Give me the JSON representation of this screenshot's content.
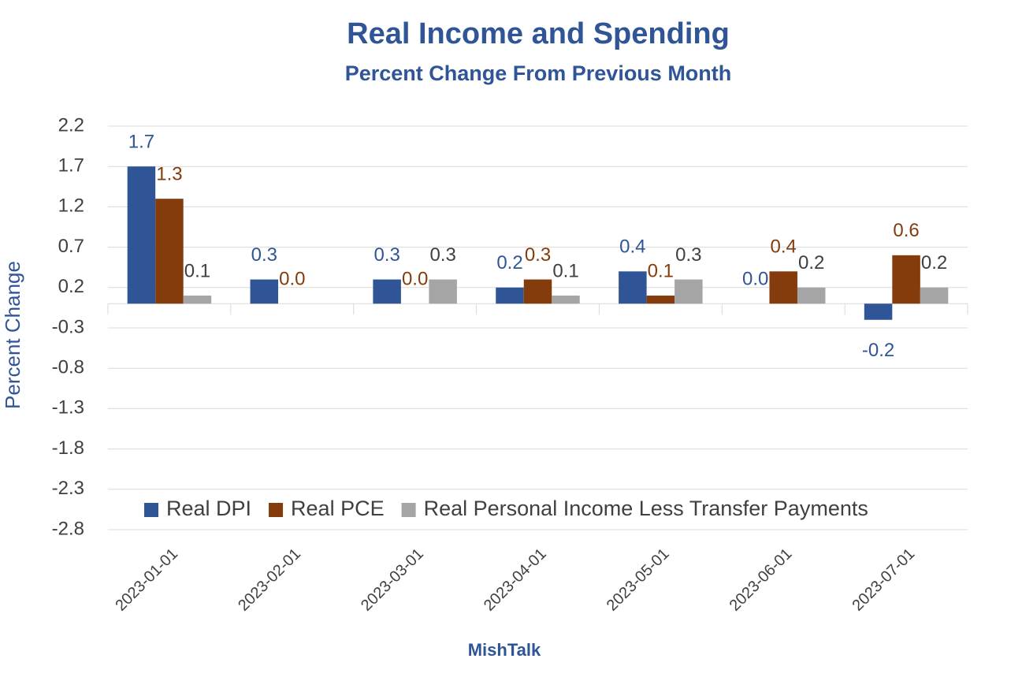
{
  "chart_data": {
    "type": "bar",
    "title": "Real Income and Spending",
    "subtitle": "Percent Change From Previous Month",
    "y_label": "Percent Change",
    "x_label": "MishTalk",
    "categories": [
      "2023-01-01",
      "2023-02-01",
      "2023-03-01",
      "2023-04-01",
      "2023-05-01",
      "2023-06-01",
      "2023-07-01"
    ],
    "series": [
      {
        "name": "Real DPI",
        "color": "#2f5597",
        "values": [
          1.7,
          0.3,
          0.3,
          0.2,
          0.4,
          0,
          -0.2
        ],
        "value_labels": [
          "1.7",
          "0.3",
          "0.3",
          "0.2",
          "0.4",
          "0.0",
          "-0.2"
        ]
      },
      {
        "name": "Real PCE",
        "color": "#843c0c",
        "values": [
          1.3,
          0,
          0,
          0.3,
          0.1,
          0.4,
          0.6
        ],
        "value_labels": [
          "1.3",
          "0.0",
          "0.0",
          "0.3",
          "0.1",
          "0.4",
          "0.6"
        ]
      },
      {
        "name": "Real Personal Income Less Transfer Payments",
        "color": "#a5a5a5",
        "values": [
          0.1,
          null,
          0.3,
          0.1,
          0.3,
          0.2,
          0.2
        ],
        "value_labels": [
          "0.1",
          null,
          "0.3",
          "0.1",
          "0.3",
          "0.2",
          "0.2"
        ]
      }
    ],
    "ylim": [
      -2.8,
      2.2
    ],
    "yticks": [
      2.2,
      1.7,
      1.2,
      0.7,
      0.2,
      -0.3,
      -0.8,
      -1.3,
      -1.8,
      -2.3,
      -2.8
    ],
    "grid": true,
    "legend": "bottom"
  }
}
